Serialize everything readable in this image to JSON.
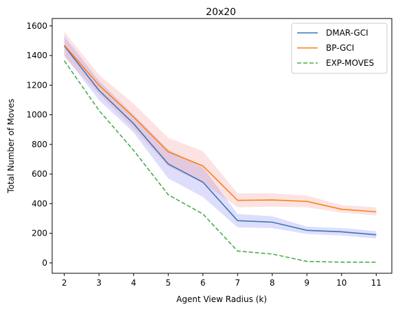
{
  "chart_data": {
    "type": "line",
    "title": "20x20",
    "xlabel": "Agent View Radius (k)",
    "ylabel": "Total Number of Moves",
    "x": [
      2,
      3,
      4,
      5,
      6,
      7,
      8,
      9,
      10,
      11
    ],
    "xlim": [
      1.65,
      11.45
    ],
    "ylim": [
      -70,
      1650
    ],
    "xticks": [
      "2",
      "3",
      "4",
      "5",
      "6",
      "7",
      "8",
      "9",
      "10",
      "11"
    ],
    "yticks": [
      "0",
      "200",
      "400",
      "600",
      "800",
      "1000",
      "1200",
      "1400",
      "1600"
    ],
    "grid": false,
    "legend_position": "top-right",
    "series": [
      {
        "name": "DMAR-GCI",
        "color": "#3a75b0",
        "style": "solid",
        "values": [
          1465,
          1165,
          940,
          668,
          545,
          285,
          275,
          220,
          210,
          190
        ],
        "band_lower": [
          1400,
          1100,
          880,
          570,
          445,
          240,
          235,
          195,
          185,
          165
        ],
        "band_upper": [
          1530,
          1230,
          1000,
          765,
          645,
          330,
          315,
          245,
          235,
          215
        ],
        "band_color": "#6a6af0"
      },
      {
        "name": "BP-GCI",
        "color": "#ff7f0e",
        "style": "solid",
        "values": [
          1470,
          1200,
          985,
          750,
          655,
          422,
          425,
          415,
          362,
          345
        ],
        "band_lower": [
          1390,
          1140,
          905,
          650,
          540,
          375,
          380,
          375,
          340,
          320
        ],
        "band_upper": [
          1560,
          1270,
          1075,
          845,
          755,
          470,
          470,
          455,
          390,
          375
        ],
        "band_color": "#f08080"
      },
      {
        "name": "EXP-MOVES",
        "color": "#4aaa4a",
        "style": "dashed",
        "values": [
          1365,
          1030,
          760,
          460,
          330,
          80,
          60,
          10,
          5,
          5
        ]
      }
    ]
  }
}
